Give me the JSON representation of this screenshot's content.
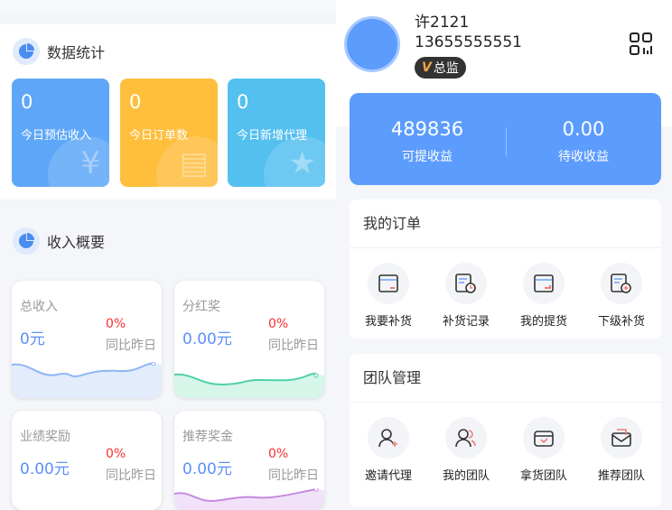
{
  "stats": {
    "title": "数据统计",
    "items": [
      {
        "value": "0",
        "label": "今日预估收入",
        "color": "#5ea7f8",
        "icon": "yen-icon"
      },
      {
        "value": "0",
        "label": "今日订单数",
        "color": "#ffbe3c",
        "icon": "clipboard-icon"
      },
      {
        "value": "0",
        "label": "今日新增代理",
        "color": "#54c0f0",
        "icon": "star-icon"
      }
    ]
  },
  "income": {
    "title": "收入概要",
    "items": [
      {
        "title": "总收入",
        "value": "0元",
        "percent": "0%",
        "compare": "同比昨日",
        "color": "#8fb6f6"
      },
      {
        "title": "分红奖",
        "value": "0.00元",
        "percent": "0%",
        "compare": "同比昨日",
        "color": "#4fd1a5"
      },
      {
        "title": "业绩奖励",
        "value": "0.00元",
        "percent": "0%",
        "compare": "同比昨日",
        "color": "#8fb6f6"
      },
      {
        "title": "推荐奖金",
        "value": "0.00元",
        "percent": "0%",
        "compare": "同比昨日",
        "color": "#c58be0"
      }
    ]
  },
  "profile": {
    "name": "许2121",
    "phone": "13655555551",
    "badge_letter": "V",
    "badge": "总监"
  },
  "earnings": {
    "withdrawable": "489836",
    "withdrawable_label": "可提收益",
    "pending": "0.00",
    "pending_label": "待收收益"
  },
  "orders": {
    "title": "我的订单",
    "items": [
      "我要补货",
      "补货记录",
      "我的提货",
      "下级补货"
    ]
  },
  "team": {
    "title": "团队管理",
    "items": [
      "邀请代理",
      "我的团队",
      "拿货团队",
      "推荐团队"
    ]
  }
}
